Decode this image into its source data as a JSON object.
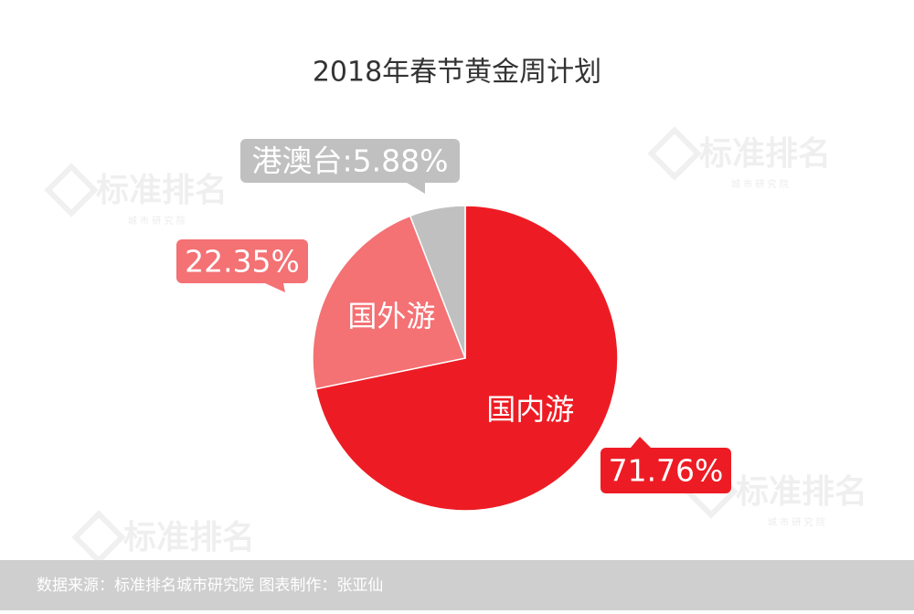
{
  "chart_data": {
    "type": "pie",
    "title": "2018年春节黄金周计划",
    "categories": [
      "国内游",
      "国外游",
      null
    ],
    "values": [
      71.76,
      22.35,
      5.88
    ],
    "value_labels": [
      "71.76%",
      "22.35%",
      "港澳台:5.88%"
    ],
    "colors": [
      "#ed1c24",
      "#f47174",
      "#c0c0c0"
    ],
    "source": "数据来源：标准排名城市研究院  图表制作：张亚仙",
    "watermark": {
      "brand": "标准排名",
      "sub": "城 市 研 究 院"
    }
  }
}
